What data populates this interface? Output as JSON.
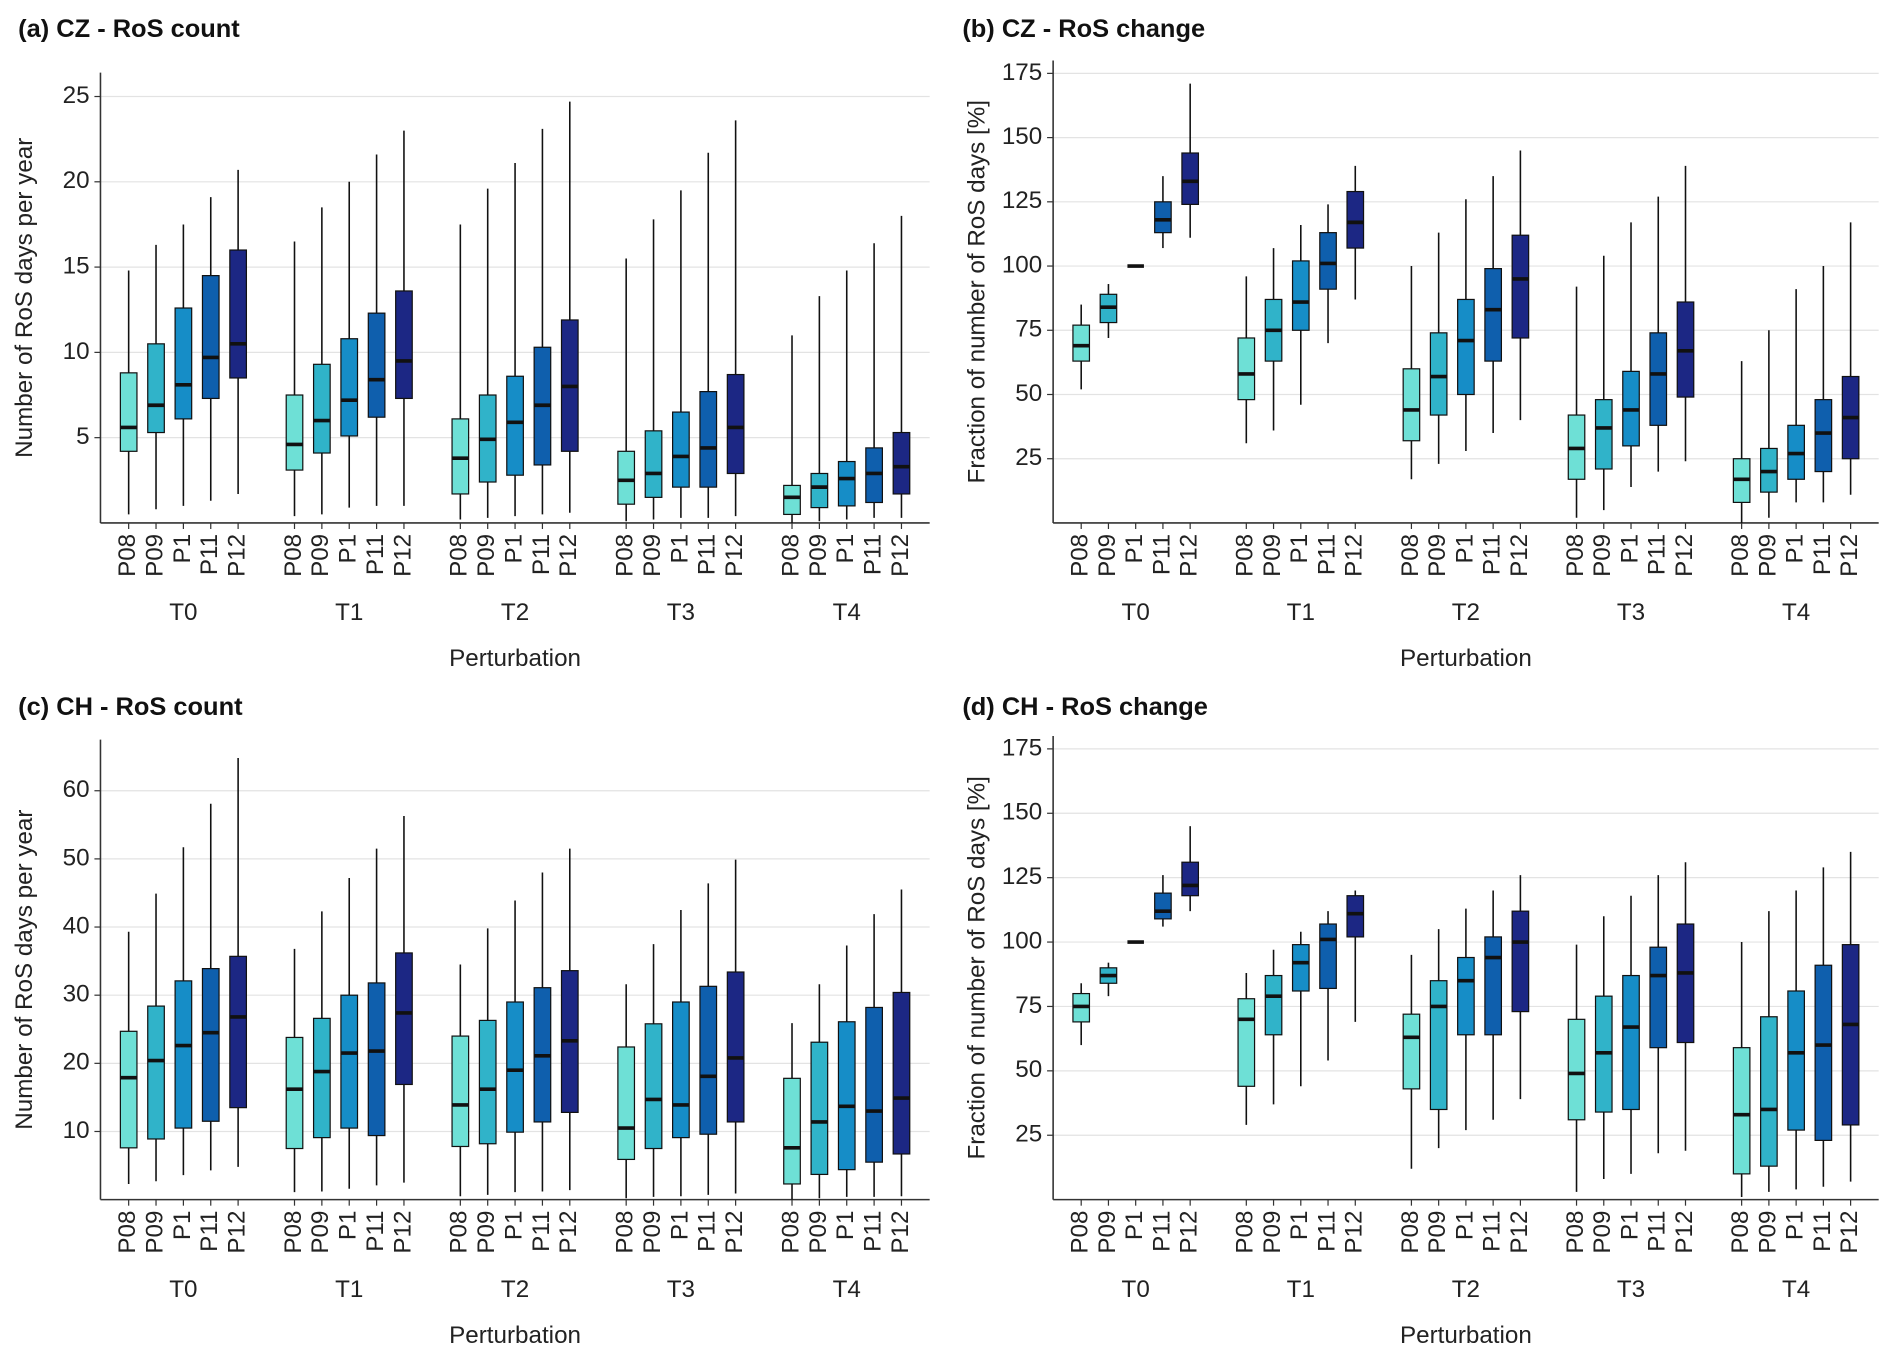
{
  "chart_data": [
    {
      "type": "box",
      "title": "(a) CZ - RoS count",
      "ylabel": "Number of RoS days per year",
      "xlabel": "Perturbation",
      "groups": [
        "T0",
        "T1",
        "T2",
        "T3",
        "T4"
      ],
      "ylim": [
        0,
        26.4
      ],
      "yticks": [
        5,
        10,
        15,
        20,
        25
      ],
      "grid": true,
      "series": [
        {
          "name": "P08",
          "color": "#6ee0d6",
          "min": [
            0.5,
            0.4,
            0.2,
            0.1,
            0
          ],
          "q1": [
            4.2,
            3.1,
            1.7,
            1.1,
            0.5
          ],
          "median": [
            5.6,
            4.6,
            3.8,
            2.5,
            1.5
          ],
          "q3": [
            8.8,
            7.5,
            6.1,
            4.2,
            2.2
          ],
          "max": [
            14.8,
            16.5,
            17.5,
            15.5,
            11.0
          ]
        },
        {
          "name": "P09",
          "color": "#30b3c9",
          "min": [
            0.8,
            0.5,
            0.3,
            0.2,
            0.1
          ],
          "q1": [
            5.3,
            4.1,
            2.4,
            1.5,
            0.9
          ],
          "median": [
            6.9,
            6.0,
            4.9,
            2.9,
            2.1
          ],
          "q3": [
            10.5,
            9.3,
            7.5,
            5.4,
            2.9
          ],
          "max": [
            16.3,
            18.5,
            19.6,
            17.8,
            13.3
          ]
        },
        {
          "name": "P1",
          "color": "#168dc7",
          "min": [
            1.0,
            0.9,
            0.4,
            0.3,
            0.2
          ],
          "q1": [
            6.1,
            5.1,
            2.8,
            2.1,
            1.0
          ],
          "median": [
            8.1,
            7.2,
            5.9,
            3.9,
            2.6
          ],
          "q3": [
            12.6,
            10.8,
            8.6,
            6.5,
            3.6
          ],
          "max": [
            17.5,
            20.0,
            21.1,
            19.5,
            14.8
          ]
        },
        {
          "name": "P11",
          "color": "#0f5fad",
          "min": [
            1.3,
            1.0,
            0.5,
            0.3,
            0.3
          ],
          "q1": [
            7.3,
            6.2,
            3.4,
            2.1,
            1.2
          ],
          "median": [
            9.7,
            8.4,
            6.9,
            4.4,
            2.9
          ],
          "q3": [
            14.5,
            12.3,
            10.3,
            7.7,
            4.4
          ],
          "max": [
            19.1,
            21.6,
            23.1,
            21.7,
            16.4
          ]
        },
        {
          "name": "P12",
          "color": "#1c2784",
          "min": [
            1.7,
            1.0,
            0.6,
            0.4,
            0.3
          ],
          "q1": [
            8.5,
            7.3,
            4.2,
            2.9,
            1.7
          ],
          "median": [
            10.5,
            9.5,
            8.0,
            5.6,
            3.3
          ],
          "q3": [
            16.0,
            13.6,
            11.9,
            8.7,
            5.3
          ],
          "max": [
            20.7,
            23.0,
            24.7,
            23.6,
            18.0
          ]
        }
      ]
    },
    {
      "type": "box",
      "title": "(b) CZ - RoS change",
      "ylabel": "Fraction of number of RoS days [%]",
      "xlabel": "Perturbation",
      "groups": [
        "T0",
        "T1",
        "T2",
        "T3",
        "T4"
      ],
      "ylim": [
        0,
        180
      ],
      "yticks": [
        25,
        50,
        75,
        100,
        125,
        150,
        175
      ],
      "grid": true,
      "series": [
        {
          "name": "P08",
          "color": "#6ee0d6",
          "min": [
            52,
            31,
            17,
            2,
            0
          ],
          "q1": [
            63,
            48,
            32,
            17,
            8
          ],
          "median": [
            69,
            58,
            44,
            29,
            17
          ],
          "q3": [
            77,
            72,
            60,
            42,
            25
          ],
          "max": [
            85,
            96,
            100,
            92,
            63
          ]
        },
        {
          "name": "P09",
          "color": "#30b3c9",
          "min": [
            72,
            36,
            23,
            5,
            2
          ],
          "q1": [
            78,
            63,
            42,
            21,
            12
          ],
          "median": [
            84,
            75,
            57,
            37,
            20
          ],
          "q3": [
            89,
            87,
            74,
            48,
            29
          ],
          "max": [
            93,
            107,
            113,
            104,
            75
          ]
        },
        {
          "name": "P1",
          "color": "#168dc7",
          "min": [
            100,
            46,
            28,
            14,
            8
          ],
          "q1": [
            100,
            75,
            50,
            30,
            17
          ],
          "median": [
            100,
            86,
            71,
            44,
            27
          ],
          "q3": [
            100,
            102,
            87,
            59,
            38
          ],
          "max": [
            100,
            116,
            126,
            117,
            91
          ]
        },
        {
          "name": "P11",
          "color": "#0f5fad",
          "min": [
            107,
            70,
            35,
            20,
            8
          ],
          "q1": [
            113,
            91,
            63,
            38,
            20
          ],
          "median": [
            118,
            101,
            83,
            58,
            35
          ],
          "q3": [
            125,
            113,
            99,
            74,
            48
          ],
          "max": [
            135,
            124,
            135,
            127,
            100
          ]
        },
        {
          "name": "P12",
          "color": "#1c2784",
          "min": [
            111,
            87,
            40,
            24,
            11
          ],
          "q1": [
            124,
            107,
            72,
            49,
            25
          ],
          "median": [
            133,
            117,
            95,
            67,
            41
          ],
          "q3": [
            144,
            129,
            112,
            86,
            57
          ],
          "max": [
            171,
            139,
            145,
            139,
            117
          ]
        }
      ]
    },
    {
      "type": "box",
      "title": "(c) CH - RoS count",
      "ylabel": "Number of RoS days per year",
      "xlabel": "Perturbation",
      "groups": [
        "T0",
        "T1",
        "T2",
        "T3",
        "T4"
      ],
      "ylim": [
        0,
        67.5
      ],
      "yticks": [
        10,
        20,
        30,
        40,
        50,
        60
      ],
      "grid": true,
      "series": [
        {
          "name": "P08",
          "color": "#6ee0d6",
          "min": [
            2.3,
            1.1,
            0.5,
            0.2,
            0
          ],
          "q1": [
            7.6,
            7.5,
            7.8,
            5.9,
            2.3
          ],
          "median": [
            17.9,
            16.2,
            13.9,
            10.5,
            7.6
          ],
          "q3": [
            24.7,
            23.8,
            24.0,
            22.4,
            17.8
          ],
          "max": [
            39.3,
            36.8,
            34.5,
            31.6,
            25.9
          ]
        },
        {
          "name": "P09",
          "color": "#30b3c9",
          "min": [
            2.7,
            1.2,
            0.7,
            0.4,
            0.2
          ],
          "q1": [
            8.9,
            9.1,
            8.2,
            7.5,
            3.7
          ],
          "median": [
            20.4,
            18.8,
            16.2,
            14.7,
            11.4
          ],
          "q3": [
            28.4,
            26.6,
            26.3,
            25.8,
            23.1
          ],
          "max": [
            44.9,
            42.3,
            39.8,
            37.5,
            31.6
          ]
        },
        {
          "name": "P1",
          "color": "#168dc7",
          "min": [
            3.6,
            1.6,
            1.1,
            0.5,
            0.4
          ],
          "q1": [
            10.5,
            10.5,
            9.9,
            9.1,
            4.4
          ],
          "median": [
            22.6,
            21.5,
            19.0,
            13.9,
            13.7
          ],
          "q3": [
            32.1,
            30.0,
            29.0,
            29.0,
            26.1
          ],
          "max": [
            51.7,
            47.2,
            43.9,
            42.5,
            37.3
          ]
        },
        {
          "name": "P11",
          "color": "#0f5fad",
          "min": [
            4.3,
            2.1,
            1.2,
            0.7,
            0.4
          ],
          "q1": [
            11.5,
            9.4,
            11.4,
            9.6,
            5.5
          ],
          "median": [
            24.5,
            21.8,
            21.1,
            18.1,
            13.0
          ],
          "q3": [
            33.9,
            31.8,
            31.1,
            31.3,
            28.2
          ],
          "max": [
            58.1,
            51.5,
            48.0,
            46.4,
            41.9
          ]
        },
        {
          "name": "P12",
          "color": "#1c2784",
          "min": [
            4.8,
            2.5,
            1.4,
            0.9,
            0.5
          ],
          "q1": [
            13.5,
            16.9,
            12.8,
            11.4,
            6.7
          ],
          "median": [
            26.8,
            27.4,
            23.3,
            20.8,
            14.9
          ],
          "q3": [
            35.7,
            36.2,
            33.6,
            33.4,
            30.4
          ],
          "max": [
            64.8,
            56.3,
            51.5,
            49.9,
            45.5
          ]
        }
      ]
    },
    {
      "type": "box",
      "title": "(d) CH - RoS change",
      "ylabel": "Fraction of number of RoS days [%]",
      "xlabel": "Perturbation",
      "groups": [
        "T0",
        "T1",
        "T2",
        "T3",
        "T4"
      ],
      "ylim": [
        0,
        180
      ],
      "yticks": [
        25,
        50,
        75,
        100,
        125,
        150,
        175
      ],
      "grid": true,
      "series": [
        {
          "name": "P08",
          "color": "#6ee0d6",
          "min": [
            60,
            29,
            12,
            3,
            1
          ],
          "q1": [
            69,
            44,
            43,
            31,
            10
          ],
          "median": [
            75,
            70,
            63,
            49,
            33
          ],
          "q3": [
            80,
            78,
            72,
            70,
            59
          ],
          "max": [
            84,
            88,
            95,
            99,
            100
          ]
        },
        {
          "name": "P09",
          "color": "#30b3c9",
          "min": [
            79,
            37,
            20,
            8,
            3
          ],
          "q1": [
            84,
            64,
            35,
            34,
            13
          ],
          "median": [
            87,
            79,
            75,
            57,
            35
          ],
          "q3": [
            90,
            87,
            85,
            79,
            71
          ],
          "max": [
            92,
            97,
            105,
            110,
            112
          ]
        },
        {
          "name": "P1",
          "color": "#168dc7",
          "min": [
            100,
            44,
            27,
            10,
            4
          ],
          "q1": [
            100,
            81,
            64,
            35,
            27
          ],
          "median": [
            100,
            92,
            85,
            67,
            57
          ],
          "q3": [
            100,
            99,
            94,
            87,
            81
          ],
          "max": [
            100,
            104,
            113,
            118,
            120
          ]
        },
        {
          "name": "P11",
          "color": "#0f5fad",
          "min": [
            106,
            54,
            31,
            18,
            5
          ],
          "q1": [
            109,
            82,
            64,
            59,
            23
          ],
          "median": [
            112,
            101,
            94,
            87,
            60
          ],
          "q3": [
            119,
            107,
            102,
            98,
            91
          ],
          "max": [
            126,
            112,
            120,
            126,
            129
          ]
        },
        {
          "name": "P12",
          "color": "#1c2784",
          "min": [
            112,
            69,
            39,
            19,
            7
          ],
          "q1": [
            118,
            102,
            73,
            61,
            29
          ],
          "median": [
            122,
            111,
            100,
            88,
            68
          ],
          "q3": [
            131,
            118,
            112,
            107,
            99
          ],
          "max": [
            145,
            120,
            126,
            131,
            135
          ]
        }
      ]
    }
  ]
}
